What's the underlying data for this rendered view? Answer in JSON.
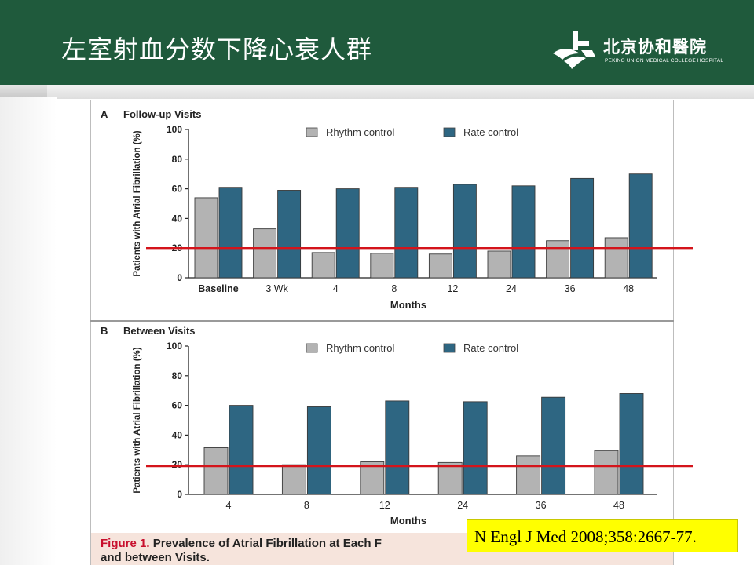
{
  "slide": {
    "title": "左室射血分数下降心衰人群",
    "logo_name": "北京协和醫院",
    "logo_subtitle": "PEKING UNION MEDICAL COLLEGE HOSPITAL"
  },
  "colors": {
    "header": "#1f5a3c",
    "rhythm": "#b3b3b3",
    "rate": "#2e6682",
    "reference_line": "#d4141b",
    "caption_red": "#c8102e",
    "citation_bg": "#ffff00"
  },
  "caption": {
    "label": "Figure 1.",
    "text_line1": "Prevalence of Atrial Fibrillation at Each F",
    "text_line2": "and between Visits."
  },
  "citation": "N Engl J Med 2008;358:2667-77.",
  "chart_data": [
    {
      "type": "bar",
      "panel_letter": "A",
      "title": "Follow-up Visits",
      "categories": [
        "Baseline",
        "3 Wk",
        "4",
        "8",
        "12",
        "24",
        "36",
        "48"
      ],
      "series": [
        {
          "name": "Rhythm control",
          "values": [
            54,
            33,
            17,
            16.5,
            16,
            18,
            25,
            27
          ]
        },
        {
          "name": "Rate control",
          "values": [
            61,
            59,
            60,
            61,
            63,
            62,
            67,
            70
          ]
        }
      ],
      "xlabel": "Months",
      "ylabel": "Patients with Atrial Fibrillation (%)",
      "ylim": [
        0,
        100
      ],
      "yticks": [
        "0",
        "20",
        "40",
        "60",
        "80",
        "100"
      ],
      "reference_line_y": 20,
      "legend_position": "top"
    },
    {
      "type": "bar",
      "panel_letter": "B",
      "title": "Between Visits",
      "categories": [
        "4",
        "8",
        "12",
        "24",
        "36",
        "48"
      ],
      "series": [
        {
          "name": "Rhythm control",
          "values": [
            31.5,
            20,
            22,
            21.5,
            26,
            29.5
          ]
        },
        {
          "name": "Rate control",
          "values": [
            60,
            59,
            63,
            62.5,
            65.5,
            68
          ]
        }
      ],
      "xlabel": "Months",
      "ylabel": "Patients with Atrial Fibrillation (%)",
      "ylim": [
        0,
        100
      ],
      "yticks": [
        "0",
        "20",
        "40",
        "60",
        "80",
        "100"
      ],
      "reference_line_y": 19,
      "legend_position": "top"
    }
  ]
}
